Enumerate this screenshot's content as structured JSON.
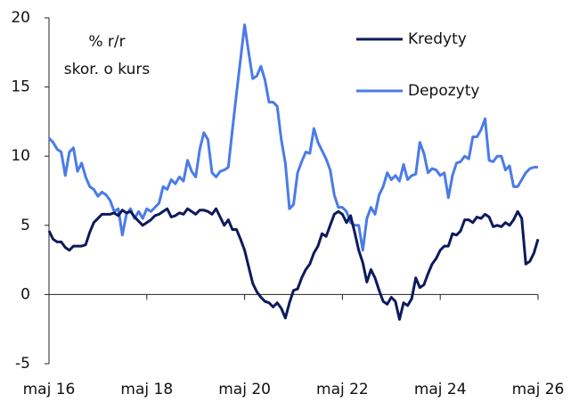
{
  "chart_data": {
    "type": "line",
    "annotations": [
      "% r/r",
      "skor. o kurs"
    ],
    "categories": [
      "maj 16",
      null,
      null,
      null,
      null,
      null,
      null,
      null,
      null,
      null,
      null,
      null,
      null,
      null,
      null,
      null,
      null,
      null,
      null,
      null,
      null,
      null,
      null,
      null,
      "maj 18",
      null,
      null,
      null,
      null,
      null,
      null,
      null,
      null,
      null,
      null,
      null,
      null,
      null,
      null,
      null,
      null,
      null,
      null,
      null,
      null,
      null,
      null,
      null,
      "maj 20",
      null,
      null,
      null,
      null,
      null,
      null,
      null,
      null,
      null,
      null,
      null,
      null,
      null,
      null,
      null,
      null,
      null,
      null,
      null,
      null,
      null,
      null,
      null,
      "maj 22",
      null,
      null,
      null,
      null,
      null,
      null,
      null,
      null,
      null,
      null,
      null,
      null,
      null,
      null,
      null,
      null,
      null,
      null,
      null,
      null,
      null,
      null,
      null,
      "maj 24",
      null,
      null,
      null,
      null,
      null,
      null,
      null,
      null,
      null,
      null,
      null,
      null,
      null,
      null,
      null,
      null,
      null,
      null,
      null,
      null,
      null,
      null,
      null,
      "maj 26"
    ],
    "series": [
      {
        "name": "Kredyty",
        "color": "#0d1a5c",
        "values": [
          4.6,
          4.0,
          3.8,
          3.8,
          3.4,
          3.2,
          3.5,
          3.5,
          3.5,
          3.6,
          4.5,
          5.2,
          5.5,
          5.8,
          5.8,
          5.8,
          5.9,
          5.7,
          6.1,
          5.9,
          6.0,
          5.6,
          5.3,
          5.0,
          5.2,
          5.4,
          5.7,
          5.8,
          6.0,
          6.2,
          5.6,
          5.7,
          5.9,
          5.8,
          6.2,
          6.0,
          5.8,
          6.1,
          6.1,
          6.0,
          5.8,
          6.2,
          5.6,
          5.0,
          5.4,
          4.7,
          4.7,
          4.0,
          3.2,
          2.0,
          0.8,
          0.2,
          -0.2,
          -0.5,
          -0.6,
          -0.9,
          -0.6,
          -1.0,
          -1.7,
          -0.6,
          0.3,
          0.4,
          1.2,
          1.8,
          2.2,
          3.0,
          3.5,
          4.4,
          4.2,
          5.0,
          5.8,
          6.0,
          5.8,
          5.2,
          5.7,
          4.5,
          3.2,
          2.3,
          0.9,
          1.8,
          1.2,
          0.3,
          -0.5,
          -0.7,
          -0.2,
          -0.5,
          -1.8,
          -0.6,
          -0.8,
          -0.3,
          1.2,
          0.5,
          0.7,
          1.5,
          2.2,
          2.6,
          3.2,
          3.5,
          3.5,
          4.4,
          4.3,
          4.6,
          5.4,
          5.4,
          5.2,
          5.6,
          5.5,
          5.8,
          5.6,
          4.9,
          5.0,
          4.9,
          5.2,
          5.0,
          5.4,
          6.0,
          5.5,
          2.2,
          2.4,
          3.0,
          4.0
        ]
      },
      {
        "name": "Depozyty",
        "color": "#4a7be8",
        "values": [
          11.3,
          11.0,
          10.5,
          10.3,
          8.6,
          10.3,
          10.6,
          8.9,
          9.5,
          8.5,
          7.8,
          7.6,
          7.1,
          7.4,
          7.2,
          6.8,
          6.0,
          6.2,
          4.3,
          5.8,
          6.2,
          5.5,
          6.0,
          5.5,
          6.2,
          6.0,
          6.3,
          6.6,
          7.8,
          7.6,
          8.3,
          8.0,
          8.5,
          8.2,
          9.7,
          8.9,
          8.5,
          10.5,
          11.7,
          11.2,
          8.8,
          8.5,
          8.9,
          9.0,
          9.2,
          11.9,
          14.5,
          17.0,
          19.5,
          17.5,
          15.6,
          15.8,
          16.5,
          15.5,
          13.9,
          13.9,
          13.6,
          11.2,
          9.5,
          6.2,
          6.5,
          8.8,
          9.6,
          10.3,
          10.2,
          12.0,
          11.0,
          10.4,
          9.8,
          9.0,
          7.2,
          6.3,
          6.3,
          6.0,
          5.2,
          5.0,
          5.0,
          3.2,
          5.5,
          6.3,
          5.8,
          7.2,
          7.8,
          8.8,
          8.3,
          8.6,
          8.2,
          9.4,
          8.3,
          8.6,
          8.7,
          11.0,
          10.2,
          8.8,
          9.1,
          9.0,
          8.6,
          8.8,
          7.0,
          8.6,
          9.5,
          9.6,
          10.0,
          9.8,
          11.4,
          11.4,
          11.9,
          12.7,
          9.7,
          9.6,
          10.0,
          10.0,
          9.0,
          9.3,
          7.8,
          7.8,
          8.3,
          8.8,
          9.1,
          9.2,
          9.2
        ]
      }
    ],
    "ylim": [
      -5,
      20
    ],
    "yticks": [
      -5,
      0,
      5,
      10,
      15,
      20
    ],
    "legend": "upper right"
  }
}
